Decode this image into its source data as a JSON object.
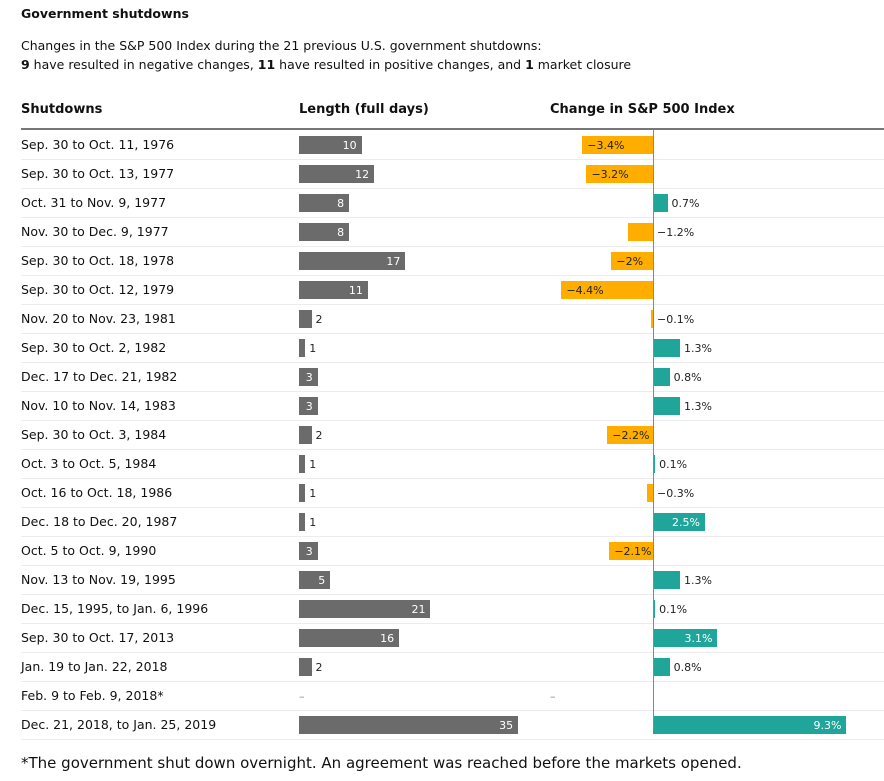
{
  "title": "Government shutdowns",
  "subtitle_line1": "Changes in the S&P 500 Index during the 21 previous U.S. government shutdowns:",
  "subtitle_line2": {
    "n_neg": "9",
    "t1": " have resulted in negative changes, ",
    "n_pos": "11",
    "t2": " have resulted in positive changes, and ",
    "n_closed": "1",
    "t3": " market closure"
  },
  "footnote": "*The government shut down overnight. An agreement was reached before the markets opened.",
  "colors": {
    "length": "#6b6b6b",
    "negative": "#ffae00",
    "positive": "#1fa59a"
  },
  "chart_data": {
    "type": "table",
    "columns": [
      "Shutdowns",
      "Length (full days)",
      "Change in S&P 500 Index"
    ],
    "rows": [
      {
        "period": "Sep. 30 to Oct. 11, 1976",
        "days": 10,
        "change": -3.4
      },
      {
        "period": "Sep. 30 to Oct. 13, 1977",
        "days": 12,
        "change": -3.2
      },
      {
        "period": "Oct. 31 to Nov. 9, 1977",
        "days": 8,
        "change": 0.7
      },
      {
        "period": "Nov. 30 to Dec. 9, 1977",
        "days": 8,
        "change": -1.2
      },
      {
        "period": "Sep. 30 to Oct. 18, 1978",
        "days": 17,
        "change": -2
      },
      {
        "period": "Sep. 30 to Oct. 12, 1979",
        "days": 11,
        "change": -4.4
      },
      {
        "period": "Nov. 20 to Nov. 23, 1981",
        "days": 2,
        "change": -0.1
      },
      {
        "period": "Sep. 30 to Oct. 2, 1982",
        "days": 1,
        "change": 1.3
      },
      {
        "period": "Dec. 17 to Dec. 21, 1982",
        "days": 3,
        "change": 0.8
      },
      {
        "period": "Nov. 10 to Nov. 14, 1983",
        "days": 3,
        "change": 1.3
      },
      {
        "period": "Sep. 30 to Oct. 3, 1984",
        "days": 2,
        "change": -2.2
      },
      {
        "period": "Oct. 3 to Oct. 5, 1984",
        "days": 1,
        "change": 0.1
      },
      {
        "period": "Oct. 16 to Oct. 18, 1986",
        "days": 1,
        "change": -0.3
      },
      {
        "period": "Dec. 18 to Dec. 20, 1987",
        "days": 1,
        "change": 2.5
      },
      {
        "period": "Oct. 5 to Oct. 9, 1990",
        "days": 3,
        "change": -2.1
      },
      {
        "period": "Nov. 13 to Nov. 19, 1995",
        "days": 5,
        "change": 1.3
      },
      {
        "period": "Dec. 15, 1995, to Jan. 6, 1996",
        "days": 21,
        "change": 0.1
      },
      {
        "period": "Sep. 30 to Oct. 17, 2013",
        "days": 16,
        "change": 3.1
      },
      {
        "period": "Jan. 19 to Jan. 22, 2018",
        "days": 2,
        "change": 0.8
      },
      {
        "period": "Feb. 9 to Feb. 9, 2018*",
        "days": null,
        "change": null,
        "days_text": "–",
        "change_text": "–"
      },
      {
        "period": "Dec. 21, 2018, to Jan. 25, 2019",
        "days": 35,
        "change": 9.3
      }
    ]
  }
}
